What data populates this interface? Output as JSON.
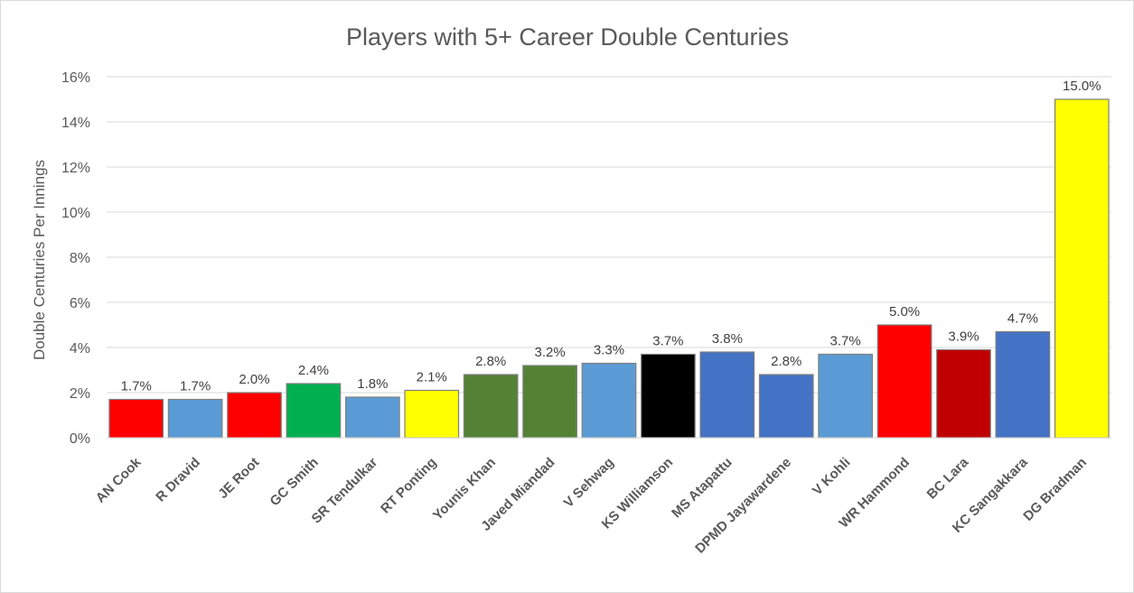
{
  "chart_data": {
    "type": "bar",
    "title": "Players with 5+ Career Double Centuries",
    "xlabel": "",
    "ylabel": "Double Centuries Per Innings",
    "ylim": [
      0,
      16
    ],
    "yticks": [
      0,
      2,
      4,
      6,
      8,
      10,
      12,
      14,
      16
    ],
    "ytick_labels": [
      "0%",
      "2%",
      "4%",
      "6%",
      "8%",
      "10%",
      "12%",
      "14%",
      "16%"
    ],
    "grid": true,
    "legend": "none",
    "categories": [
      "AN Cook",
      "R Dravid",
      "JE Root",
      "GC Smith",
      "SR Tendulkar",
      "RT Ponting",
      "Younis Khan",
      "Javed Miandad",
      "V Sehwag",
      "KS Williamson",
      "MS Atapattu",
      "DPMD Jayawardene",
      "V Kohli",
      "WR Hammond",
      "BC Lara",
      "KC Sangakkara",
      "DG Bradman"
    ],
    "values": [
      1.7,
      1.7,
      2.0,
      2.4,
      1.8,
      2.1,
      2.8,
      3.2,
      3.3,
      3.7,
      3.8,
      2.8,
      3.7,
      5.0,
      3.9,
      4.7,
      15.0
    ],
    "data_labels": [
      "1.7%",
      "1.7%",
      "2.0%",
      "2.4%",
      "1.8%",
      "2.1%",
      "2.8%",
      "3.2%",
      "3.3%",
      "3.7%",
      "3.8%",
      "2.8%",
      "3.7%",
      "5.0%",
      "3.9%",
      "4.7%",
      "15.0%"
    ],
    "colors": [
      "#ff0000",
      "#5b9bd5",
      "#ff0000",
      "#00b050",
      "#5b9bd5",
      "#ffff00",
      "#548235",
      "#548235",
      "#5b9bd5",
      "#000000",
      "#4472c4",
      "#4472c4",
      "#5b9bd5",
      "#ff0000",
      "#c00000",
      "#4472c4",
      "#ffff00"
    ]
  }
}
